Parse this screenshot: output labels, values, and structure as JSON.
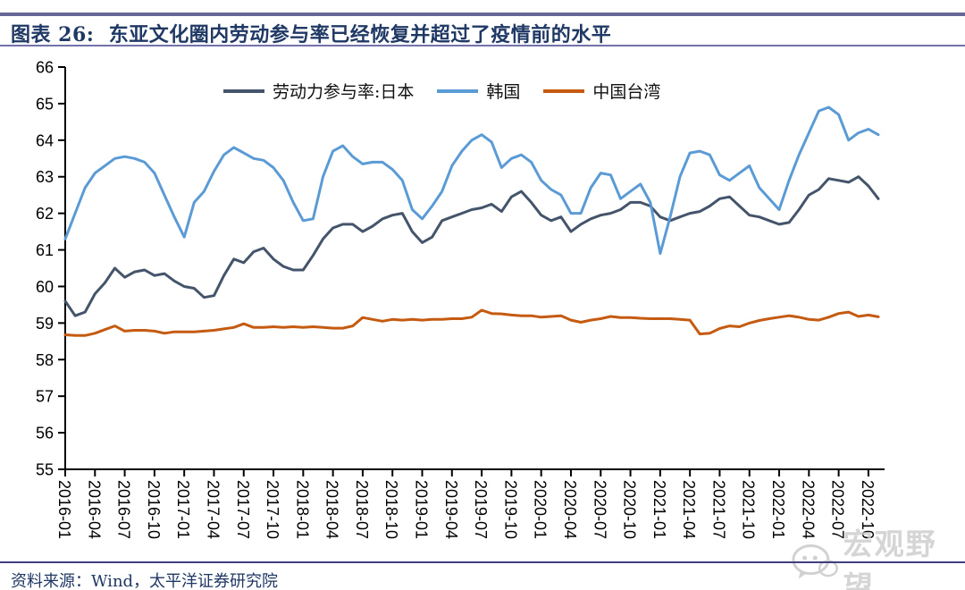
{
  "header": {
    "title": "图表 26:  东亚文化圈内劳动参与率已经恢复并超过了疫情前的水平"
  },
  "footer": {
    "source": "资料来源：Wind，太平洋证券研究院"
  },
  "watermark": {
    "text": "宏观野望",
    "icon": "wechat-icon",
    "color": "#cbcbcb"
  },
  "style_colors": {
    "title_text": "#1F3864",
    "top_rule": "#666699",
    "bottom_rule": "#3f3f7f",
    "axis": "#000000"
  },
  "chart_data": {
    "type": "line",
    "title": "东亚文化圈内劳动参与率已经恢复并超过了疫情前的水平",
    "x_start": "2016-01",
    "x_freq": "monthly",
    "x_tick_labels": [
      "2016-01",
      "2016-04",
      "2016-07",
      "2016-10",
      "2017-01",
      "2017-04",
      "2017-07",
      "2017-10",
      "2018-01",
      "2018-04",
      "2018-07",
      "2018-10",
      "2019-01",
      "2019-04",
      "2019-07",
      "2019-10",
      "2020-01",
      "2020-04",
      "2020-07",
      "2020-10",
      "2021-01",
      "2021-04",
      "2021-07",
      "2021-10",
      "2022-01",
      "2022-04",
      "2022-07",
      "2022-10"
    ],
    "ylim": [
      55,
      66
    ],
    "y_ticks": [
      55,
      56,
      57,
      58,
      59,
      60,
      61,
      62,
      63,
      64,
      65,
      66
    ],
    "grid": false,
    "legend_position": "top-center",
    "series": [
      {
        "name": "劳动力参与率:日本",
        "color": "#44546A",
        "values": [
          59.6,
          59.2,
          59.3,
          59.8,
          60.1,
          60.5,
          60.25,
          60.4,
          60.45,
          60.3,
          60.35,
          60.15,
          60.0,
          59.95,
          59.7,
          59.75,
          60.3,
          60.75,
          60.65,
          60.95,
          61.05,
          60.75,
          60.55,
          60.45,
          60.45,
          60.85,
          61.3,
          61.6,
          61.7,
          61.7,
          61.5,
          61.65,
          61.85,
          61.95,
          62.0,
          61.5,
          61.2,
          61.35,
          61.8,
          61.9,
          62.0,
          62.1,
          62.15,
          62.25,
          62.05,
          62.45,
          62.6,
          62.3,
          61.95,
          61.8,
          61.9,
          61.5,
          61.7,
          61.85,
          61.95,
          62.0,
          62.1,
          62.3,
          62.3,
          62.2,
          61.9,
          61.8,
          61.9,
          62.0,
          62.05,
          62.2,
          62.4,
          62.45,
          62.2,
          61.95,
          61.9,
          61.8,
          61.7,
          61.75,
          62.1,
          62.5,
          62.65,
          62.95,
          62.9,
          62.85,
          63.0,
          62.75,
          62.4
        ]
      },
      {
        "name": "韩国",
        "color": "#5B9BD5",
        "values": [
          61.3,
          62.0,
          62.7,
          63.1,
          63.3,
          63.5,
          63.55,
          63.5,
          63.4,
          63.1,
          62.5,
          61.9,
          61.35,
          62.3,
          62.6,
          63.15,
          63.6,
          63.8,
          63.65,
          63.5,
          63.45,
          63.25,
          62.9,
          62.3,
          61.8,
          61.85,
          63.0,
          63.7,
          63.85,
          63.55,
          63.35,
          63.4,
          63.4,
          63.2,
          62.9,
          62.1,
          61.85,
          62.2,
          62.6,
          63.3,
          63.7,
          64.0,
          64.15,
          63.95,
          63.25,
          63.5,
          63.6,
          63.4,
          62.9,
          62.65,
          62.5,
          62.0,
          62.0,
          62.7,
          63.1,
          63.05,
          62.4,
          62.6,
          62.8,
          62.3,
          60.9,
          61.9,
          63.0,
          63.65,
          63.7,
          63.6,
          63.05,
          62.9,
          63.1,
          63.3,
          62.7,
          62.4,
          62.1,
          62.9,
          63.6,
          64.2,
          64.8,
          64.9,
          64.7,
          64.0,
          64.2,
          64.3,
          64.15
        ]
      },
      {
        "name": "中国台湾",
        "color": "#C55A11",
        "values": [
          58.68,
          58.66,
          58.66,
          58.72,
          58.82,
          58.92,
          58.78,
          58.8,
          58.8,
          58.78,
          58.72,
          58.76,
          58.76,
          58.76,
          58.78,
          58.8,
          58.84,
          58.88,
          58.98,
          58.88,
          58.88,
          58.9,
          58.88,
          58.9,
          58.88,
          58.9,
          58.88,
          58.86,
          58.86,
          58.92,
          59.15,
          59.1,
          59.05,
          59.1,
          59.08,
          59.1,
          59.08,
          59.1,
          59.1,
          59.12,
          59.12,
          59.16,
          59.35,
          59.26,
          59.25,
          59.22,
          59.2,
          59.2,
          59.16,
          59.18,
          59.2,
          59.08,
          59.02,
          59.08,
          59.12,
          59.18,
          59.15,
          59.15,
          59.13,
          59.12,
          59.12,
          59.12,
          59.1,
          59.08,
          58.7,
          58.72,
          58.85,
          58.92,
          58.9,
          59.0,
          59.07,
          59.12,
          59.16,
          59.2,
          59.16,
          59.1,
          59.08,
          59.16,
          59.26,
          59.3,
          59.18,
          59.22,
          59.17
        ]
      }
    ]
  }
}
